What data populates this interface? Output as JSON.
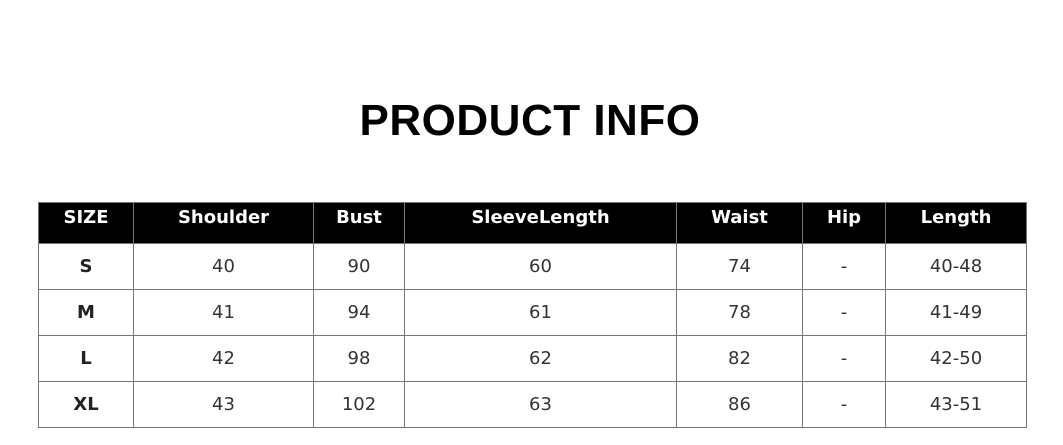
{
  "title": "PRODUCT INFO",
  "table": {
    "headers": [
      "SIZE",
      "Shoulder",
      "Bust",
      "SleeveLength",
      "Waist",
      "Hip",
      "Length"
    ],
    "rows": [
      [
        "S",
        "40",
        "90",
        "60",
        "74",
        "-",
        "40-48"
      ],
      [
        "M",
        "41",
        "94",
        "61",
        "78",
        "-",
        "41-49"
      ],
      [
        "L",
        "42",
        "98",
        "62",
        "82",
        "-",
        "42-50"
      ],
      [
        "XL",
        "43",
        "102",
        "63",
        "86",
        "-",
        "43-51"
      ]
    ]
  }
}
